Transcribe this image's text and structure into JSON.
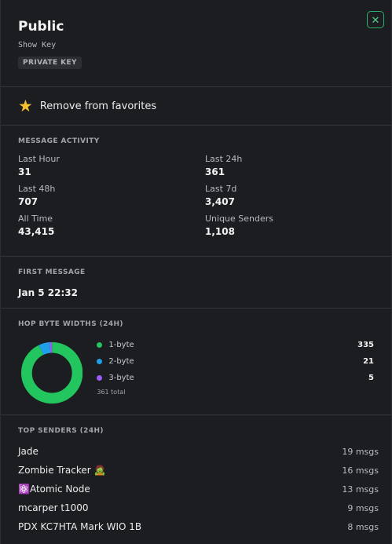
{
  "header": {
    "title": "Public",
    "show_key": "Show Key",
    "badge": "PRIVATE KEY",
    "close_glyph": "✕",
    "accent_color": "#2fae6b"
  },
  "favorite": {
    "icon": "star-icon",
    "label": "Remove from favorites"
  },
  "activity": {
    "title": "MESSAGE ACTIVITY",
    "stats": [
      {
        "label": "Last Hour",
        "value": "31"
      },
      {
        "label": "Last 24h",
        "value": "361"
      },
      {
        "label": "Last 48h",
        "value": "707"
      },
      {
        "label": "Last 7d",
        "value": "3,407"
      },
      {
        "label": "All Time",
        "value": "43,415"
      },
      {
        "label": "Unique Senders",
        "value": "1,108"
      }
    ]
  },
  "first_message": {
    "title": "FIRST MESSAGE",
    "value": "Jan 5 22:32"
  },
  "hop": {
    "title": "HOP BYTE WIDTHS (24H)",
    "total": "361 total",
    "items": [
      {
        "label": "1-byte",
        "value": 335,
        "color": "#22c55e"
      },
      {
        "label": "2-byte",
        "value": 21,
        "color": "#1e9fe6"
      },
      {
        "label": "3-byte",
        "value": 5,
        "color": "#9d5cf5"
      }
    ]
  },
  "senders": {
    "title": "TOP SENDERS (24H)",
    "items": [
      {
        "name": "Jade",
        "count": "19 msgs"
      },
      {
        "name": "Zombie Tracker 🧟",
        "count": "16 msgs"
      },
      {
        "name": "⚛️Atomic Node",
        "count": "13 msgs"
      },
      {
        "name": "mcarper t1000",
        "count": "9 msgs"
      },
      {
        "name": "PDX KC7HTA Mark WIO 1B",
        "count": "8 msgs"
      }
    ]
  }
}
